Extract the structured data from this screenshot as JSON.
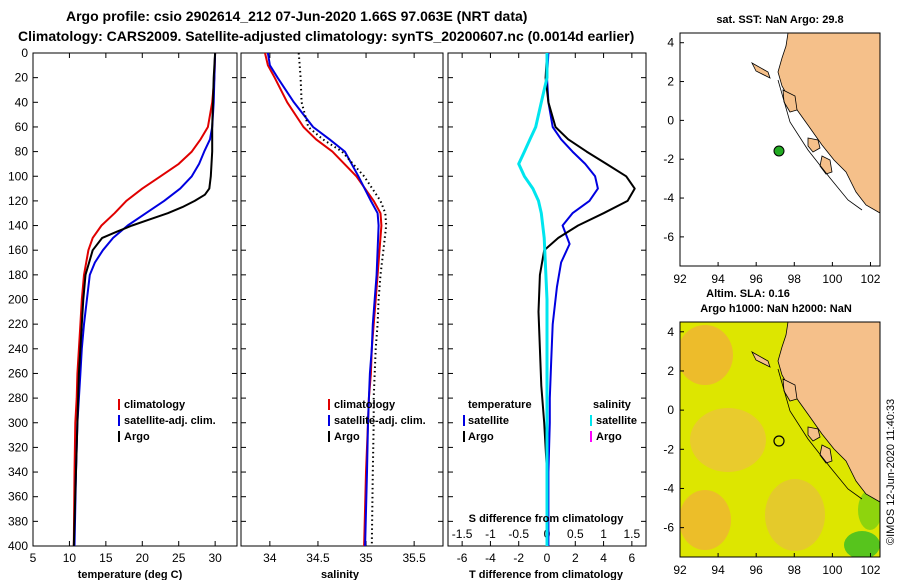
{
  "header": {
    "title_line1": "Argo profile: csio 2902614_212 07-Jun-2020 1.66S 97.063E (NRT data)",
    "title_line2": "Climatology: CARS2009. Satellite-adjusted climatology: synTS_20200607.nc (0.0014d earlier)"
  },
  "colors": {
    "climatology": "#e00000",
    "satellite": "#0000e0",
    "argo": "#000000",
    "satellite_salinity": "#00e5ee",
    "argo_salinity": "#ff00ff",
    "land": "#f5c08a",
    "station_marker": "#22aa22"
  },
  "side": {
    "map1_title": "sat. SST: NaN Argo: 29.8",
    "map2_title1": "Altim. SLA: 0.16",
    "map2_title2": "Argo h1000: NaN h2000: NaN",
    "credit": "©IMOS 12-Jun-2020 11:40:33"
  },
  "chart_data": [
    {
      "type": "line",
      "title": "",
      "xlabel": "temperature (deg C)",
      "ylabel": "",
      "xlim": [
        5,
        33
      ],
      "ylim": [
        0,
        400
      ],
      "xticks": [
        5,
        10,
        15,
        20,
        25,
        30
      ],
      "yticks": [
        0,
        20,
        40,
        60,
        80,
        100,
        120,
        140,
        160,
        180,
        200,
        220,
        240,
        260,
        280,
        300,
        320,
        340,
        360,
        380,
        400
      ],
      "legend": {
        "position": "bottom-right",
        "entries": [
          {
            "label": "climatology",
            "key": "climatology"
          },
          {
            "label": "satellite-adj. clim.",
            "key": "satellite"
          },
          {
            "label": "Argo",
            "key": "argo"
          }
        ]
      },
      "series": [
        {
          "name": "climatology",
          "key": "climatology",
          "style": "solid",
          "x": [
            30.0,
            29.9,
            29.6,
            29.0,
            28.0,
            26.8,
            25.0,
            22.5,
            20.0,
            17.8,
            16.2,
            14.4,
            13.2,
            12.6,
            12.3,
            12.0,
            11.7,
            11.5,
            11.3,
            11.1,
            11.0,
            10.8,
            10.7,
            10.6
          ],
          "y": [
            0,
            20,
            40,
            60,
            70,
            80,
            90,
            100,
            110,
            120,
            130,
            140,
            150,
            160,
            170,
            180,
            200,
            220,
            240,
            260,
            280,
            300,
            340,
            400
          ]
        },
        {
          "name": "satellite-adj. clim.",
          "key": "satellite",
          "style": "solid",
          "x": [
            30.0,
            29.9,
            29.8,
            29.6,
            29.3,
            28.5,
            27.8,
            26.8,
            25.2,
            23.0,
            20.5,
            18.0,
            16.0,
            14.6,
            13.5,
            12.8,
            12.4,
            12.0,
            11.7,
            11.5,
            11.3,
            11.1,
            10.9,
            10.7
          ],
          "y": [
            0,
            20,
            40,
            60,
            70,
            80,
            90,
            100,
            110,
            120,
            130,
            140,
            150,
            160,
            170,
            180,
            200,
            220,
            240,
            260,
            280,
            300,
            340,
            400
          ]
        },
        {
          "name": "Argo",
          "key": "argo",
          "style": "solid",
          "x": [
            30.0,
            29.8,
            29.7,
            29.6,
            29.6,
            29.5,
            29.4,
            29.2,
            28.6,
            27.2,
            25.5,
            23.5,
            21.0,
            18.6,
            16.5,
            14.5,
            13.2,
            12.2,
            11.9,
            11.7,
            11.5,
            11.3,
            11.1,
            10.6
          ],
          "y": [
            0,
            20,
            40,
            60,
            80,
            90,
            100,
            110,
            115,
            120,
            125,
            130,
            135,
            140,
            145,
            150,
            160,
            180,
            200,
            220,
            240,
            260,
            300,
            400
          ]
        }
      ]
    },
    {
      "type": "line",
      "title": "",
      "xlabel": "salinity",
      "ylabel": "",
      "xlim": [
        33.7,
        35.8
      ],
      "ylim": [
        0,
        400
      ],
      "xticks": [
        34,
        34.5,
        35,
        35.5
      ],
      "yticks": [
        0,
        20,
        40,
        60,
        80,
        100,
        120,
        140,
        160,
        180,
        200,
        220,
        240,
        260,
        280,
        300,
        320,
        340,
        360,
        380,
        400
      ],
      "legend": {
        "position": "bottom-right",
        "entries": [
          {
            "label": "climatology",
            "key": "climatology"
          },
          {
            "label": "satellite-adj. clim.",
            "key": "satellite"
          },
          {
            "label": "Argo",
            "key": "argo"
          }
        ]
      },
      "series": [
        {
          "name": "climatology",
          "key": "climatology",
          "style": "solid",
          "x": [
            33.95,
            33.98,
            34.05,
            34.18,
            34.35,
            34.48,
            34.65,
            34.9,
            35.08,
            35.15,
            35.16,
            35.14,
            35.12,
            35.1,
            35.08,
            35.06,
            35.05,
            35.03,
            35.02,
            35.0,
            34.98
          ],
          "y": [
            0,
            10,
            20,
            40,
            60,
            70,
            80,
            100,
            120,
            130,
            140,
            160,
            180,
            200,
            220,
            240,
            260,
            280,
            300,
            340,
            400
          ]
        },
        {
          "name": "satellite-adj. clim.",
          "key": "satellite",
          "style": "solid",
          "x": [
            33.98,
            34.0,
            34.08,
            34.25,
            34.45,
            34.62,
            34.78,
            34.92,
            35.05,
            35.12,
            35.13,
            35.12,
            35.11,
            35.09,
            35.07,
            35.06,
            35.04,
            35.03,
            35.02,
            35.01,
            34.99
          ],
          "y": [
            0,
            10,
            20,
            40,
            60,
            70,
            80,
            100,
            120,
            130,
            140,
            160,
            180,
            200,
            220,
            240,
            260,
            280,
            300,
            340,
            400
          ]
        },
        {
          "name": "Argo",
          "key": "argo",
          "style": "dotted",
          "x": [
            34.3,
            34.31,
            34.32,
            34.33,
            34.4,
            34.55,
            34.75,
            34.98,
            35.15,
            35.2,
            35.21,
            35.18,
            35.15,
            35.13,
            35.12,
            35.1,
            35.09,
            35.08,
            35.08,
            35.07,
            35.06
          ],
          "y": [
            0,
            10,
            20,
            40,
            60,
            70,
            80,
            100,
            120,
            130,
            140,
            160,
            180,
            200,
            220,
            240,
            260,
            280,
            300,
            340,
            400
          ]
        }
      ]
    },
    {
      "type": "line",
      "title": "",
      "xlabel": "T difference from climatology",
      "x2label": "S difference from climatology",
      "ylabel": "",
      "xlim": [
        -7,
        7
      ],
      "ylim": [
        0,
        400
      ],
      "xticks": [
        -6,
        -4,
        -2,
        0,
        2,
        4,
        6
      ],
      "x2ticks": [
        -1.5,
        -1,
        -0.5,
        0,
        0.5,
        1,
        1.5
      ],
      "yticks": [
        0,
        20,
        40,
        60,
        80,
        100,
        120,
        140,
        160,
        180,
        200,
        220,
        240,
        260,
        280,
        300,
        320,
        340,
        360,
        380,
        400
      ],
      "legend": {
        "position": "bottom",
        "left_heading": "temperature",
        "right_heading": "salinity",
        "entries": [
          {
            "label": "satellite",
            "key": "satellite",
            "group": "temperature"
          },
          {
            "label": "Argo",
            "key": "argo",
            "group": "temperature"
          },
          {
            "label": "satellite",
            "key": "satellite_salinity",
            "group": "salinity"
          },
          {
            "label": "Argo",
            "key": "argo_salinity",
            "group": "salinity"
          }
        ]
      },
      "series": [
        {
          "name": "temperature satellite",
          "key": "satellite",
          "style": "solid",
          "x": [
            0.1,
            0.0,
            0.1,
            0.4,
            1.0,
            1.8,
            2.7,
            3.4,
            3.6,
            3.0,
            1.8,
            1.1,
            1.6,
            1.0,
            0.7,
            0.4,
            0.3,
            0.2,
            0.2,
            0.1,
            0.1
          ],
          "y": [
            0,
            20,
            40,
            60,
            70,
            80,
            90,
            100,
            110,
            120,
            130,
            140,
            155,
            170,
            190,
            220,
            250,
            280,
            300,
            340,
            400
          ]
        },
        {
          "name": "temperature Argo",
          "key": "argo",
          "style": "solid",
          "x": [
            0.0,
            -0.1,
            0.1,
            0.6,
            1.5,
            2.8,
            4.2,
            5.6,
            6.2,
            5.7,
            4.0,
            2.2,
            0.8,
            -0.2,
            -0.5,
            -0.6,
            -0.5,
            -0.4,
            -0.2,
            0.0,
            0.0
          ],
          "y": [
            0,
            20,
            40,
            60,
            70,
            80,
            90,
            100,
            110,
            120,
            130,
            140,
            150,
            160,
            180,
            210,
            240,
            270,
            300,
            340,
            400
          ]
        },
        {
          "name": "salinity satellite",
          "key": "satellite_salinity",
          "style": "solid",
          "x": [
            0.0,
            0.0,
            -0.1,
            -0.2,
            -0.3,
            -0.4,
            -0.5,
            -0.4,
            -0.25,
            -0.15,
            -0.1,
            -0.05,
            0.0,
            0.0
          ],
          "y": [
            0,
            20,
            40,
            60,
            70,
            80,
            90,
            100,
            110,
            120,
            130,
            150,
            200,
            400
          ]
        }
      ]
    }
  ],
  "maps": [
    {
      "title": "sat. SST: NaN Argo: 29.8",
      "xlim": [
        92,
        102.5
      ],
      "ylim": [
        -7.5,
        4.5
      ],
      "xticks": [
        92,
        94,
        96,
        98,
        100,
        102
      ],
      "yticks": [
        4,
        2,
        0,
        -2,
        -4,
        -6
      ],
      "station": {
        "lon": 97.063,
        "lat": -1.66
      }
    },
    {
      "title": "Altim. SLA: 0.16 / Argo h1000: NaN h2000: NaN",
      "xlim": [
        92,
        102.5
      ],
      "ylim": [
        -7.5,
        4.5
      ],
      "xticks": [
        92,
        94,
        96,
        98,
        100,
        102
      ],
      "yticks": [
        4,
        2,
        0,
        -2,
        -4,
        -6
      ],
      "station": {
        "lon": 97.063,
        "lat": -1.66
      }
    }
  ]
}
